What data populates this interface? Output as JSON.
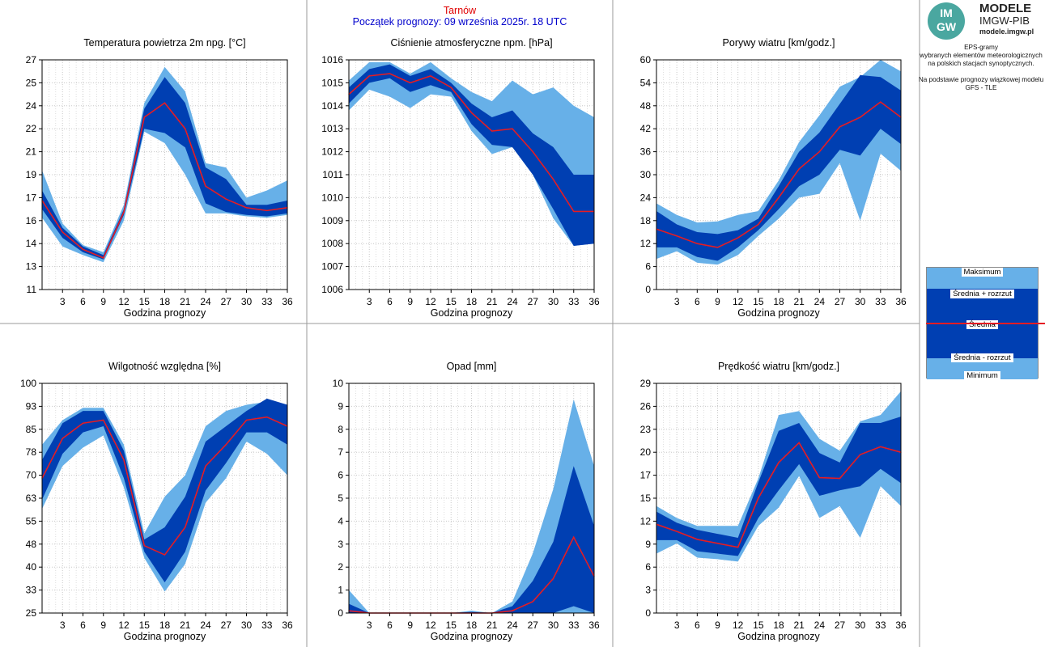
{
  "header": {
    "station": "Tarnów",
    "forecast_start": "Początek prognozy: 09 września 2025r. 18 UTC"
  },
  "logo": {
    "line1": "MODELE",
    "line2": "IMGW-PIB",
    "line3": "modele.imgw.pl",
    "mark_top": "IM",
    "mark_bottom": "GW"
  },
  "info": {
    "line1": "EPS-gramy",
    "line2": "wybranych elementów meteorologicznych",
    "line3": "na polskich stacjach  synoptycznych.",
    "line4": "Na podstawie prognozy wiązkowej modelu",
    "line5": "GFS - TLE"
  },
  "legend": {
    "max": "Maksimum",
    "mean_plus": "Średnia + rozrzut",
    "mean": "Średnia",
    "mean_minus": "Średnia - rozrzut",
    "min": "Minimum"
  },
  "colors": {
    "outer_band": "#67b0e8",
    "inner_band": "#003fb2",
    "mean_line": "#e51c23",
    "grid": "#c8c8c8",
    "station": "#e00000",
    "forecast_time": "#0000cc"
  },
  "chart_data": [
    {
      "type": "area",
      "title": "Temperatura powietrza 2m npg. [°C]",
      "xlabel": "Godzina prognozy",
      "ylabel": "",
      "x": [
        0,
        3,
        6,
        9,
        12,
        15,
        18,
        21,
        24,
        27,
        30,
        33,
        36
      ],
      "xticks": [
        "3",
        "6",
        "9",
        "12",
        "15",
        "18",
        "21",
        "24",
        "27",
        "30",
        "33",
        "36"
      ],
      "xlim": [
        0,
        36
      ],
      "ylim": [
        11,
        27
      ],
      "yticks": [
        "11",
        "13",
        "14",
        "16",
        "17",
        "19",
        "21",
        "22",
        "24",
        "25",
        "27"
      ],
      "min": [
        16.0,
        14.0,
        13.4,
        12.9,
        15.8,
        22.0,
        21.2,
        19.0,
        16.3,
        16.3,
        16.1,
        16.0,
        16.2
      ],
      "mean_minus": [
        16.6,
        14.6,
        13.6,
        13.1,
        16.2,
        22.2,
        21.9,
        20.9,
        17.0,
        16.4,
        16.2,
        16.1,
        16.3
      ],
      "mean": [
        17.2,
        15.0,
        13.8,
        13.2,
        16.4,
        23.0,
        24.0,
        22.2,
        18.2,
        17.3,
        16.7,
        16.5,
        16.7
      ],
      "mean_plus": [
        17.9,
        15.3,
        14.0,
        13.4,
        16.6,
        23.6,
        25.8,
        24.0,
        19.5,
        18.7,
        16.9,
        16.9,
        17.2
      ],
      "max": [
        19.3,
        15.6,
        14.1,
        13.6,
        16.9,
        24.0,
        26.5,
        24.8,
        19.8,
        19.5,
        17.4,
        17.9,
        18.6
      ]
    },
    {
      "type": "area",
      "title": "Ciśnienie atmosferyczne npm. [hPa]",
      "xlabel": "Godzina prognozy",
      "ylabel": "",
      "x": [
        0,
        3,
        6,
        9,
        12,
        15,
        18,
        21,
        24,
        27,
        30,
        33,
        36
      ],
      "xticks": [
        "3",
        "6",
        "9",
        "12",
        "15",
        "18",
        "21",
        "24",
        "27",
        "30",
        "33",
        "36"
      ],
      "xlim": [
        0,
        36
      ],
      "ylim": [
        1006,
        1016
      ],
      "yticks": [
        "1006",
        "1007",
        "1008",
        "1009",
        "1010",
        "1011",
        "1012",
        "1013",
        "1014",
        "1015",
        "1016"
      ],
      "min": [
        1013.8,
        1014.7,
        1014.4,
        1013.9,
        1014.5,
        1014.4,
        1012.9,
        1011.9,
        1012.2,
        1011.0,
        1009.1,
        1007.9,
        1008.0
      ],
      "mean_minus": [
        1014.1,
        1015.0,
        1015.2,
        1014.6,
        1014.9,
        1014.6,
        1013.2,
        1012.3,
        1012.2,
        1011.0,
        1009.5,
        1007.9,
        1008.0
      ],
      "mean": [
        1014.5,
        1015.3,
        1015.4,
        1015.0,
        1015.3,
        1014.8,
        1013.7,
        1012.9,
        1013.0,
        1012.0,
        1010.8,
        1009.4,
        1009.4
      ],
      "mean_plus": [
        1014.8,
        1015.6,
        1015.8,
        1015.3,
        1015.6,
        1015.0,
        1014.1,
        1013.5,
        1013.8,
        1012.8,
        1012.2,
        1011.0,
        1011.0
      ],
      "max": [
        1015.1,
        1015.9,
        1015.9,
        1015.4,
        1015.9,
        1015.2,
        1014.6,
        1014.2,
        1015.1,
        1014.5,
        1014.8,
        1014.0,
        1013.5
      ]
    },
    {
      "type": "area",
      "title": "Porywy wiatru [km/godz.]",
      "xlabel": "Godzina prognozy",
      "ylabel": "",
      "x": [
        0,
        3,
        6,
        9,
        12,
        15,
        18,
        21,
        24,
        27,
        30,
        33,
        36
      ],
      "xticks": [
        "3",
        "6",
        "9",
        "12",
        "15",
        "18",
        "21",
        "24",
        "27",
        "30",
        "33",
        "36"
      ],
      "xlim": [
        0,
        36
      ],
      "ylim": [
        0,
        60
      ],
      "yticks": [
        "0",
        "6",
        "12",
        "18",
        "24",
        "30",
        "36",
        "42",
        "48",
        "54",
        "60"
      ],
      "min": [
        8.0,
        10.0,
        7.0,
        6.5,
        9.0,
        14.0,
        18.5,
        24.0,
        25.0,
        33.0,
        18.0,
        35.5,
        31.0
      ],
      "mean_minus": [
        11.0,
        11.0,
        8.5,
        7.5,
        11.0,
        15.5,
        21.0,
        27.0,
        30.0,
        36.5,
        35.0,
        42.0,
        38.0
      ],
      "mean": [
        15.8,
        14.0,
        12.0,
        11.0,
        13.5,
        17.0,
        24.0,
        31.5,
        36.0,
        42.5,
        45.0,
        49.0,
        45.0
      ],
      "mean_plus": [
        20.5,
        17.0,
        15.0,
        14.5,
        15.5,
        18.5,
        27.0,
        36.0,
        41.0,
        48.5,
        56.0,
        55.5,
        52.0
      ],
      "max": [
        22.5,
        19.5,
        17.5,
        17.8,
        19.5,
        20.5,
        28.5,
        38.5,
        45.5,
        53.0,
        55.5,
        60.0,
        57.0
      ]
    },
    {
      "type": "area",
      "title": "Wilgotność względna [%]",
      "xlabel": "Godzina prognozy",
      "ylabel": "",
      "x": [
        0,
        3,
        6,
        9,
        12,
        15,
        18,
        21,
        24,
        27,
        30,
        33,
        36
      ],
      "xticks": [
        "3",
        "6",
        "9",
        "12",
        "15",
        "18",
        "21",
        "24",
        "27",
        "30",
        "33",
        "36"
      ],
      "xlim": [
        0,
        36
      ],
      "ylim": [
        25,
        100
      ],
      "yticks": [
        "25",
        "33",
        "40",
        "48",
        "55",
        "63",
        "70",
        "78",
        "85",
        "93",
        "100"
      ],
      "min": [
        59,
        73,
        79,
        83,
        66,
        43,
        32,
        41,
        61,
        69,
        81,
        77,
        70
      ],
      "mean_minus": [
        62,
        77,
        84,
        86,
        69,
        45,
        35,
        45,
        65,
        74,
        84,
        84,
        80
      ],
      "mean": [
        69,
        82,
        87,
        88,
        75,
        47,
        44,
        53,
        73,
        80,
        88,
        89,
        86
      ],
      "mean_plus": [
        75,
        87,
        91,
        91,
        78,
        49,
        53,
        63,
        81,
        86,
        91,
        95,
        93
      ],
      "max": [
        80,
        88,
        92,
        92,
        80,
        51,
        63,
        70,
        86,
        91,
        93,
        94,
        93
      ]
    },
    {
      "type": "area",
      "title": "Opad [mm]",
      "xlabel": "Godzina prognozy",
      "ylabel": "",
      "x": [
        0,
        3,
        6,
        9,
        12,
        15,
        18,
        21,
        24,
        27,
        30,
        33,
        36
      ],
      "xticks": [
        "3",
        "6",
        "9",
        "12",
        "15",
        "18",
        "21",
        "24",
        "27",
        "30",
        "33",
        "36"
      ],
      "xlim": [
        0,
        36
      ],
      "ylim": [
        0,
        10
      ],
      "yticks": [
        "0",
        "1",
        "2",
        "3",
        "4",
        "5",
        "6",
        "7",
        "8",
        "9",
        "10"
      ],
      "min": [
        0,
        0,
        0,
        0,
        0,
        0,
        0,
        0,
        0,
        0,
        0,
        0,
        0
      ],
      "mean_minus": [
        0,
        0,
        0,
        0,
        0,
        0,
        0,
        0,
        0,
        0,
        0,
        0.3,
        0
      ],
      "mean": [
        0.1,
        0,
        0,
        0,
        0,
        0,
        0,
        0,
        0.1,
        0.5,
        1.5,
        3.3,
        1.6
      ],
      "mean_plus": [
        0.4,
        0,
        0,
        0,
        0,
        0,
        0.05,
        0,
        0.3,
        1.4,
        3.1,
        6.4,
        3.8
      ],
      "max": [
        1.0,
        0,
        0,
        0,
        0,
        0,
        0.1,
        0,
        0.5,
        2.6,
        5.4,
        9.3,
        6.4
      ]
    },
    {
      "type": "area",
      "title": "Prędkość wiatru [km/godz.]",
      "xlabel": "Godzina prognozy",
      "ylabel": "",
      "x": [
        0,
        3,
        6,
        9,
        12,
        15,
        18,
        21,
        24,
        27,
        30,
        33,
        36
      ],
      "xticks": [
        "3",
        "6",
        "9",
        "12",
        "15",
        "18",
        "21",
        "24",
        "27",
        "30",
        "33",
        "36"
      ],
      "xlim": [
        0,
        36
      ],
      "ylim": [
        0,
        29
      ],
      "yticks": [
        "0",
        "3",
        "6",
        "9",
        "12",
        "15",
        "17",
        "20",
        "23",
        "26",
        "29"
      ],
      "min": [
        7.5,
        8.8,
        7.0,
        6.8,
        6.5,
        11.0,
        13.3,
        17.3,
        12.0,
        13.5,
        9.5,
        16.0,
        13.5
      ],
      "mean_minus": [
        9.2,
        9.2,
        7.8,
        7.5,
        7.2,
        12.0,
        15.5,
        18.8,
        14.8,
        15.5,
        16.0,
        18.2,
        16.4
      ],
      "mean": [
        11.2,
        10.3,
        9.3,
        8.8,
        8.3,
        14.5,
        19.0,
        21.5,
        17.1,
        17.0,
        20.0,
        21.0,
        20.3
      ],
      "mean_plus": [
        12.8,
        11.4,
        10.5,
        10.0,
        9.5,
        16.5,
        23.0,
        24.0,
        20.2,
        19.0,
        24.0,
        24.0,
        24.8
      ],
      "max": [
        13.5,
        12.0,
        11.0,
        11.0,
        11.0,
        17.0,
        25.0,
        25.5,
        22.0,
        20.5,
        24.2,
        25.0,
        28.0
      ]
    }
  ]
}
